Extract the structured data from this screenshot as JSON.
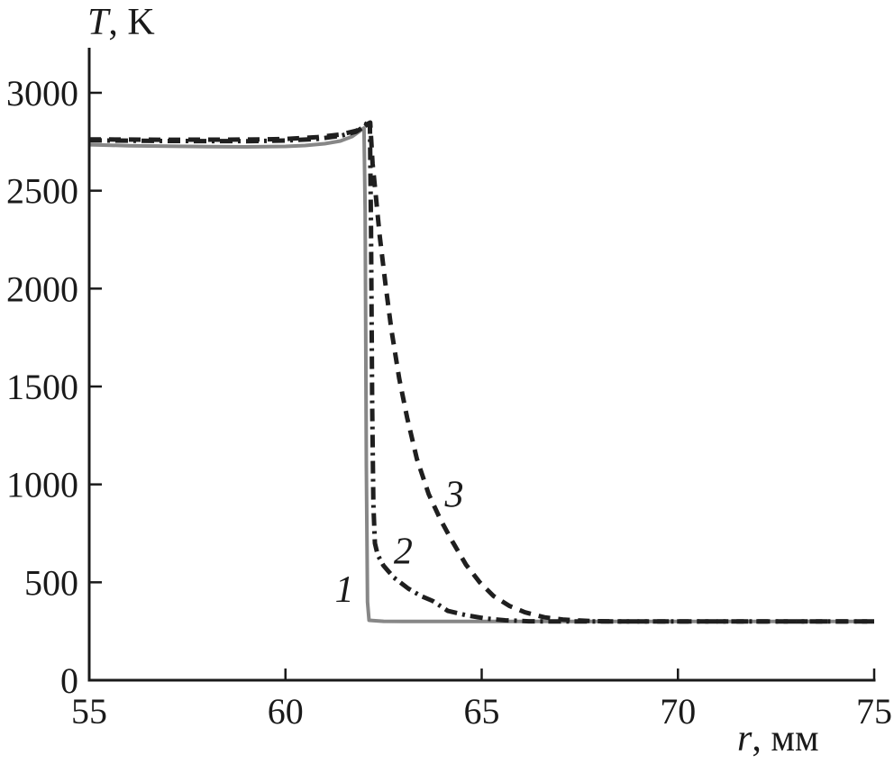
{
  "chart_data": {
    "type": "line",
    "title": "",
    "xlabel_italic": "r",
    "xlabel_rest": ", мм",
    "ylabel_italic": "T",
    "ylabel_rest": ", K",
    "xlim": [
      55,
      75
    ],
    "ylim": [
      0,
      3230
    ],
    "xticks": [
      55,
      60,
      65,
      70,
      75
    ],
    "yticks": [
      0,
      500,
      1000,
      1500,
      2000,
      2500,
      3000
    ],
    "grid": false,
    "legend_position": "none",
    "axis_color": "#1a1a1a",
    "plateau_temperature_K": 2750,
    "ambient_temperature_K": 300,
    "series": [
      {
        "name": "1",
        "style": "solid",
        "color": "#878787",
        "width": 4,
        "dash": "",
        "points": [
          [
            55,
            2735
          ],
          [
            56,
            2730
          ],
          [
            57,
            2727
          ],
          [
            58,
            2725
          ],
          [
            59,
            2724
          ],
          [
            60,
            2726
          ],
          [
            60.5,
            2731
          ],
          [
            61,
            2740
          ],
          [
            61.4,
            2754
          ],
          [
            61.7,
            2777
          ],
          [
            61.9,
            2806
          ],
          [
            62.0,
            2820
          ],
          [
            62.03,
            2400
          ],
          [
            62.06,
            1100
          ],
          [
            62.09,
            400
          ],
          [
            62.13,
            306
          ],
          [
            62.5,
            301
          ],
          [
            63,
            300
          ],
          [
            75,
            300
          ]
        ]
      },
      {
        "name": "2",
        "style": "dashdot",
        "color": "#1f1f1f",
        "width": 5,
        "dash": "14 6 3 6",
        "points": [
          [
            55,
            2757
          ],
          [
            57,
            2754
          ],
          [
            59,
            2753
          ],
          [
            60,
            2756
          ],
          [
            60.8,
            2764
          ],
          [
            61.4,
            2780
          ],
          [
            61.8,
            2801
          ],
          [
            62.0,
            2827
          ],
          [
            62.1,
            2852
          ],
          [
            62.15,
            2862
          ],
          [
            62.18,
            2300
          ],
          [
            62.21,
            1400
          ],
          [
            62.24,
            900
          ],
          [
            62.28,
            700
          ],
          [
            62.35,
            640
          ],
          [
            62.5,
            585
          ],
          [
            62.76,
            525
          ],
          [
            63.13,
            468
          ],
          [
            63.45,
            430
          ],
          [
            63.75,
            405
          ],
          [
            64.14,
            354
          ],
          [
            64.6,
            332
          ],
          [
            65.1,
            315
          ],
          [
            65.6,
            306
          ],
          [
            66.2,
            301
          ],
          [
            67,
            300
          ],
          [
            75,
            300
          ]
        ]
      },
      {
        "name": "3",
        "style": "dashed",
        "color": "#1f1f1f",
        "width": 5,
        "dash": "13 9",
        "points": [
          [
            55,
            2762
          ],
          [
            57,
            2760
          ],
          [
            59,
            2761
          ],
          [
            60,
            2764
          ],
          [
            60.8,
            2773
          ],
          [
            61.4,
            2787
          ],
          [
            61.8,
            2806
          ],
          [
            62.0,
            2824
          ],
          [
            62.1,
            2842
          ],
          [
            62.16,
            2848
          ],
          [
            62.22,
            2640
          ],
          [
            62.3,
            2480
          ],
          [
            62.4,
            2270
          ],
          [
            62.55,
            2020
          ],
          [
            62.7,
            1790
          ],
          [
            62.9,
            1540
          ],
          [
            63.1,
            1340
          ],
          [
            63.35,
            1130
          ],
          [
            63.65,
            950
          ],
          [
            63.95,
            820
          ],
          [
            64.25,
            710
          ],
          [
            64.6,
            590
          ],
          [
            64.95,
            500
          ],
          [
            65.3,
            430
          ],
          [
            65.7,
            380
          ],
          [
            66.1,
            347
          ],
          [
            66.6,
            321
          ],
          [
            67.1,
            309
          ],
          [
            67.8,
            302
          ],
          [
            68.6,
            300
          ],
          [
            75,
            300
          ]
        ]
      }
    ],
    "annotations": [
      {
        "text": "1",
        "x": 61.5,
        "y": 470
      },
      {
        "text": "2",
        "x": 63.0,
        "y": 665
      },
      {
        "text": "3",
        "x": 64.3,
        "y": 955
      }
    ]
  }
}
